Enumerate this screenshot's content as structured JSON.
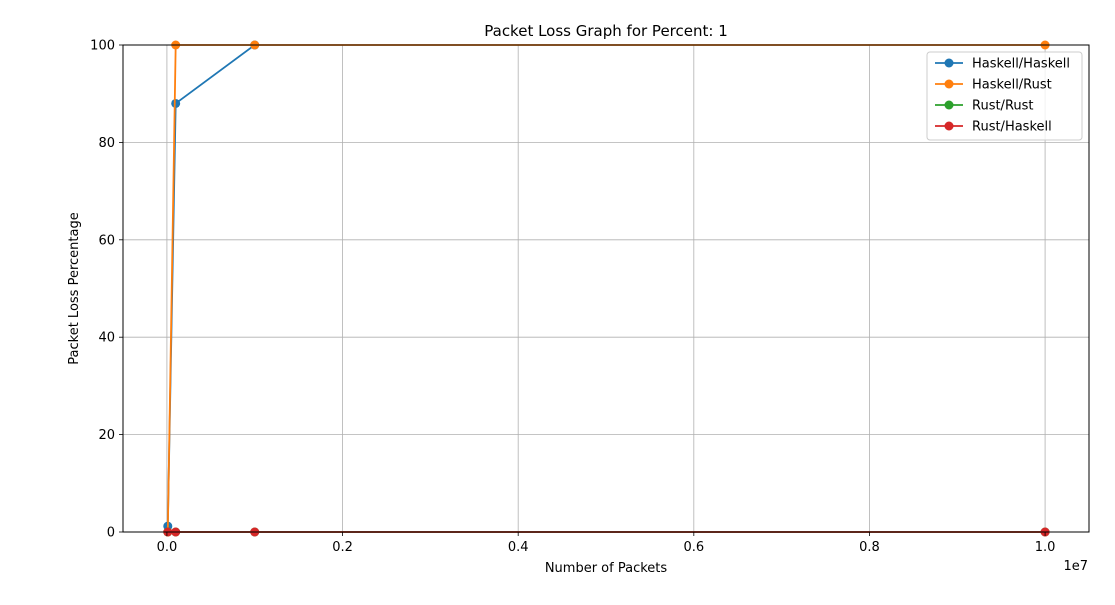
{
  "chart_data": {
    "type": "line",
    "title": "Packet Loss Graph for Percent: 1",
    "xlabel": "Number of Packets",
    "ylabel": "Packet Loss Percentage",
    "x_offset_text": "1e7",
    "x": [
      10000,
      100000,
      1000000,
      10000000
    ],
    "xlim": [
      -0.05,
      1.05
    ],
    "ylim": [
      0,
      100
    ],
    "x_ticks": [
      0.0,
      0.2,
      0.4,
      0.6,
      0.8,
      1.0
    ],
    "x_tick_labels": [
      "0.0",
      "0.2",
      "0.4",
      "0.6",
      "0.8",
      "1.0"
    ],
    "y_ticks": [
      0,
      20,
      40,
      60,
      80,
      100
    ],
    "y_tick_labels": [
      "0",
      "20",
      "40",
      "60",
      "80",
      "100"
    ],
    "grid": true,
    "legend_position": "top-right",
    "series": [
      {
        "name": "Haskell/Haskell",
        "color": "#1f77b4",
        "values": [
          1.2,
          88,
          100,
          null
        ]
      },
      {
        "name": "Haskell/Rust",
        "color": "#ff7f0e",
        "values": [
          0,
          100,
          100,
          100
        ]
      },
      {
        "name": "Rust/Rust",
        "color": "#2ca02c",
        "values": [
          0,
          0,
          0,
          0
        ]
      },
      {
        "name": "Rust/Haskell",
        "color": "#d62728",
        "values": [
          0,
          0,
          0,
          0
        ]
      }
    ]
  }
}
